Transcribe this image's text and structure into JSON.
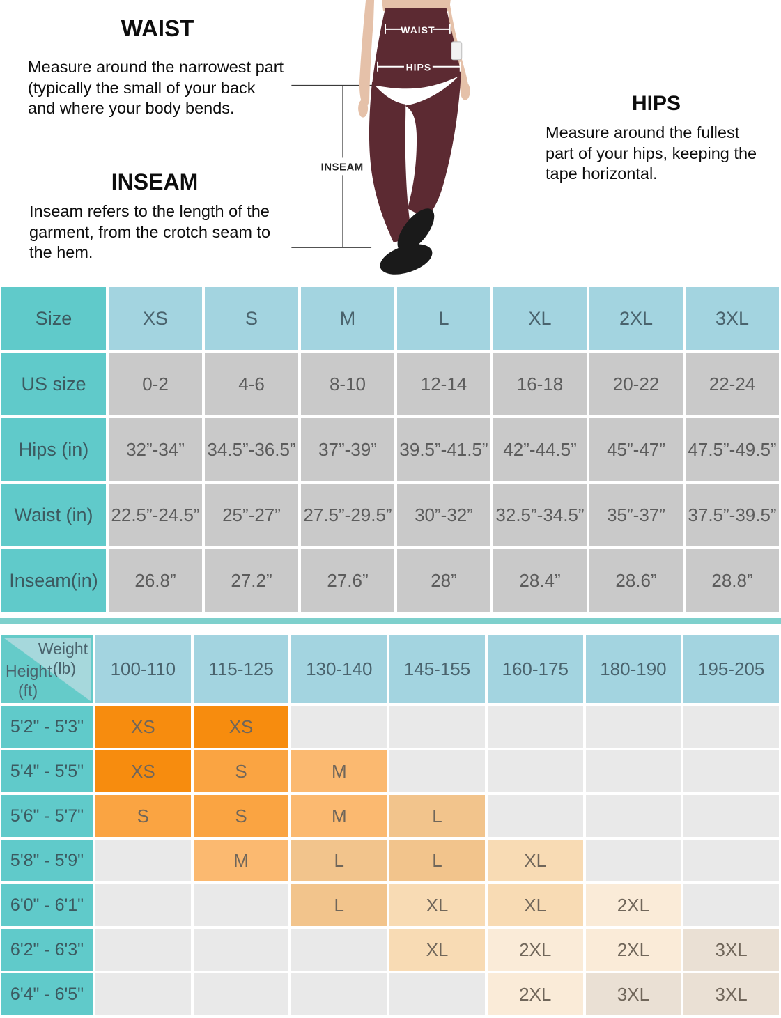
{
  "guide": {
    "waist": {
      "title": "WAIST",
      "text": "Measure around the narrowest part (typically the small of your back and where your body bends."
    },
    "inseam": {
      "title": "INSEAM",
      "text": "Inseam refers to the length of the garment, from the crotch seam to the hem."
    },
    "hips": {
      "title": "HIPS",
      "text": "Measure around the fullest part of your hips, keeping the tape horizontal."
    }
  },
  "figure": {
    "waist_label": "WAIST",
    "hips_label": "HIPS",
    "inseam_label": "INSEAM",
    "colors": {
      "leggings": "#5C2A32",
      "skin": "#E5C1A9",
      "shoes": "#1A1A1A"
    }
  },
  "size_table": {
    "corner_label": "Size",
    "columns": [
      "XS",
      "S",
      "M",
      "L",
      "XL",
      "2XL",
      "3XL"
    ],
    "rows": [
      {
        "label": "US size",
        "values": [
          "0-2",
          "4-6",
          "8-10",
          "12-14",
          "16-18",
          "20-22",
          "22-24"
        ]
      },
      {
        "label": "Hips (in)",
        "values": [
          "32”-34”",
          "34.5”-36.5”",
          "37”-39”",
          "39.5”-41.5”",
          "42”-44.5”",
          "45”-47”",
          "47.5”-49.5”"
        ]
      },
      {
        "label": "Waist (in)",
        "values": [
          "22.5”-24.5”",
          "25”-27”",
          "27.5”-29.5”",
          "30”-32”",
          "32.5”-34.5”",
          "35”-37”",
          "37.5”-39.5”"
        ]
      },
      {
        "label": "Inseam(in)",
        "values": [
          "26.8”",
          "27.2”",
          "27.6”",
          "28”",
          "28.4”",
          "28.6”",
          "28.8”"
        ]
      }
    ]
  },
  "fit_table": {
    "corner": {
      "top_label": "Weight",
      "top_unit": "(lb)",
      "side_label": "Height",
      "side_unit": "(ft)"
    },
    "columns": [
      "100-110",
      "115-125",
      "130-140",
      "145-155",
      "160-175",
      "180-190",
      "195-205"
    ],
    "rows": [
      {
        "label": "5'2\" - 5'3\"",
        "values": [
          "XS",
          "XS",
          "",
          "",
          "",
          "",
          ""
        ]
      },
      {
        "label": "5'4\" - 5'5\"",
        "values": [
          "XS",
          "S",
          "M",
          "",
          "",
          "",
          ""
        ]
      },
      {
        "label": "5'6\" - 5'7\"",
        "values": [
          "S",
          "S",
          "M",
          "L",
          "",
          "",
          ""
        ]
      },
      {
        "label": "5'8\" - 5'9\"",
        "values": [
          "",
          "M",
          "L",
          "L",
          "XL",
          "",
          ""
        ]
      },
      {
        "label": "6'0\" - 6'1\"",
        "values": [
          "",
          "",
          "L",
          "XL",
          "XL",
          "2XL",
          ""
        ]
      },
      {
        "label": "6'2\" - 6'3\"",
        "values": [
          "",
          "",
          "",
          "XL",
          "2XL",
          "2XL",
          "3XL"
        ]
      },
      {
        "label": "6'4\" - 6'5\"",
        "values": [
          "",
          "",
          "",
          "",
          "2XL",
          "3XL",
          "3XL"
        ]
      }
    ],
    "size_colors": {
      "XS": "#F78C0E",
      "S": "#FAA442",
      "M": "#FBB970",
      "L": "#F2C48C",
      "XL": "#F8DBB4",
      "2XL": "#FAEBD8",
      "3XL": "#EAE0D4",
      "empty": "#E9E9E9"
    }
  }
}
